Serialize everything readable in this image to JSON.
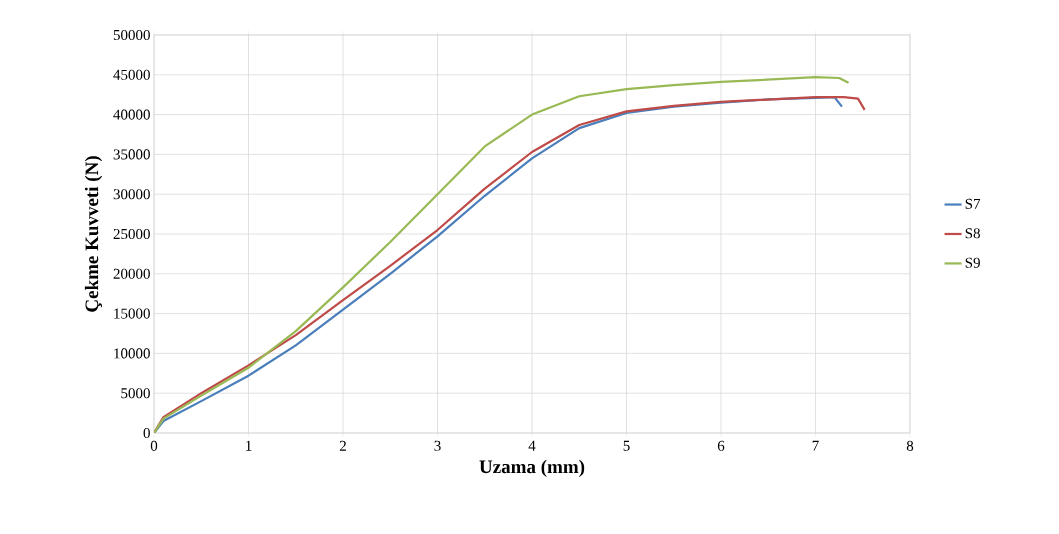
{
  "chart_data": {
    "type": "line",
    "xlabel": "Uzama (mm)",
    "ylabel": "Çekme Kuvveti (N)",
    "xlim": [
      0,
      8
    ],
    "ylim": [
      0,
      50000
    ],
    "xticks": [
      0,
      1,
      2,
      3,
      4,
      5,
      6,
      7,
      8
    ],
    "yticks": [
      0,
      5000,
      10000,
      15000,
      20000,
      25000,
      30000,
      35000,
      40000,
      45000,
      50000
    ],
    "grid": true,
    "legend": "right",
    "marker": "none",
    "line_style": "solid",
    "series": [
      {
        "name": "S7",
        "color": "#4a7ebb",
        "x": [
          0,
          0.1,
          0.5,
          1,
          1.5,
          2,
          2.5,
          3,
          3.5,
          4,
          4.5,
          5,
          5.5,
          6,
          6.5,
          7,
          7.2,
          7.28
        ],
        "values": [
          0,
          1500,
          4000,
          7200,
          11000,
          15500,
          20000,
          24700,
          29800,
          34500,
          38300,
          40200,
          41000,
          41500,
          41900,
          42100,
          42200,
          41000
        ]
      },
      {
        "name": "S8",
        "color": "#be4b48",
        "x": [
          0,
          0.1,
          0.5,
          1,
          1.5,
          2,
          2.5,
          3,
          3.5,
          4,
          4.5,
          5,
          5.5,
          6,
          6.5,
          7,
          7.3,
          7.45,
          7.52
        ],
        "values": [
          0,
          2000,
          5000,
          8500,
          12300,
          16700,
          21000,
          25500,
          30700,
          35300,
          38700,
          40400,
          41100,
          41600,
          41900,
          42200,
          42200,
          42000,
          40600
        ]
      },
      {
        "name": "S9",
        "color": "#98b954",
        "x": [
          0,
          0.1,
          0.5,
          1,
          1.5,
          2,
          2.5,
          3,
          3.5,
          4,
          4.5,
          5,
          5.5,
          6,
          6.5,
          7,
          7.25,
          7.35
        ],
        "values": [
          0,
          1800,
          4700,
          8200,
          12800,
          18300,
          24000,
          30000,
          36000,
          40000,
          42300,
          43200,
          43700,
          44100,
          44400,
          44700,
          44600,
          44000
        ]
      }
    ]
  }
}
